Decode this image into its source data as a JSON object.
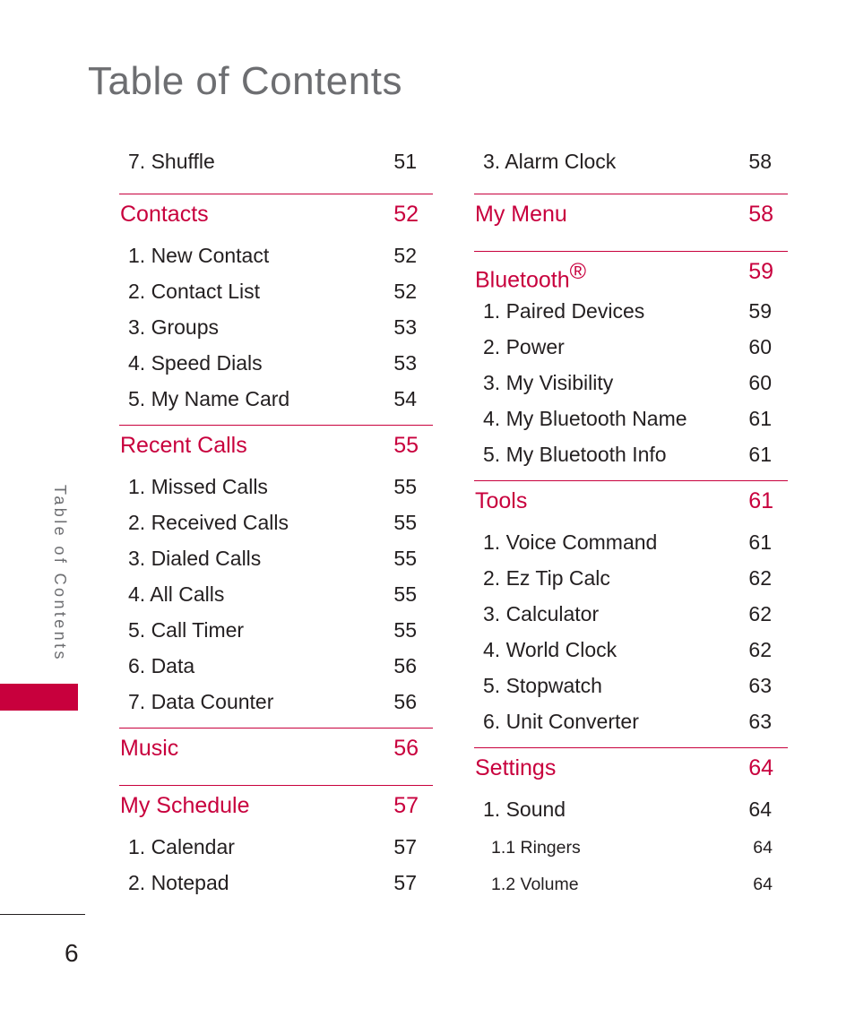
{
  "title": "Table of Contents",
  "side_tab": "Table of Contents",
  "page_number": "6",
  "accent_color": "#c8003d",
  "left_column": {
    "top_entry": {
      "label": "7. Shuffle",
      "page": "51"
    },
    "sections": [
      {
        "title": "Contacts",
        "page": "52",
        "items": [
          {
            "label": "1. New Contact",
            "page": "52"
          },
          {
            "label": "2. Contact List",
            "page": "52"
          },
          {
            "label": "3. Groups",
            "page": "53"
          },
          {
            "label": "4. Speed Dials",
            "page": "53"
          },
          {
            "label": "5. My Name Card",
            "page": "54"
          }
        ]
      },
      {
        "title": "Recent Calls",
        "page": "55",
        "items": [
          {
            "label": "1. Missed Calls",
            "page": "55"
          },
          {
            "label": "2. Received Calls",
            "page": "55"
          },
          {
            "label": "3. Dialed Calls",
            "page": "55"
          },
          {
            "label": "4. All Calls",
            "page": "55"
          },
          {
            "label": "5. Call Timer",
            "page": "55"
          },
          {
            "label": "6. Data",
            "page": "56"
          },
          {
            "label": "7. Data Counter",
            "page": "56"
          }
        ]
      },
      {
        "title": "Music",
        "page": "56",
        "items": []
      },
      {
        "title": "My Schedule",
        "page": "57",
        "items": [
          {
            "label": "1. Calendar",
            "page": "57"
          },
          {
            "label": "2. Notepad",
            "page": "57"
          }
        ]
      }
    ]
  },
  "right_column": {
    "top_entry": {
      "label": "3. Alarm Clock",
      "page": "58"
    },
    "sections": [
      {
        "title": "My Menu",
        "page": "58",
        "items": []
      },
      {
        "title": "Bluetooth",
        "title_mark": "®",
        "page": "59",
        "items": [
          {
            "label": "1. Paired Devices",
            "page": "59"
          },
          {
            "label": "2. Power",
            "page": "60"
          },
          {
            "label": "3. My Visibility",
            "page": "60"
          },
          {
            "label": "4. My Bluetooth Name",
            "page": "61"
          },
          {
            "label": "5. My Bluetooth Info",
            "page": "61"
          }
        ]
      },
      {
        "title": "Tools",
        "page": "61",
        "items": [
          {
            "label": "1. Voice Command",
            "page": "61"
          },
          {
            "label": "2. Ez Tip Calc",
            "page": "62"
          },
          {
            "label": "3. Calculator",
            "page": "62"
          },
          {
            "label": "4. World Clock",
            "page": "62"
          },
          {
            "label": "5. Stopwatch",
            "page": "63"
          },
          {
            "label": "6. Unit Converter",
            "page": "63"
          }
        ]
      },
      {
        "title": "Settings",
        "page": "64",
        "items": [
          {
            "label": "1. Sound",
            "page": "64"
          },
          {
            "label": "1.1 Ringers",
            "page": "64"
          },
          {
            "label": "1.2 Volume",
            "page": "64"
          }
        ]
      }
    ]
  }
}
